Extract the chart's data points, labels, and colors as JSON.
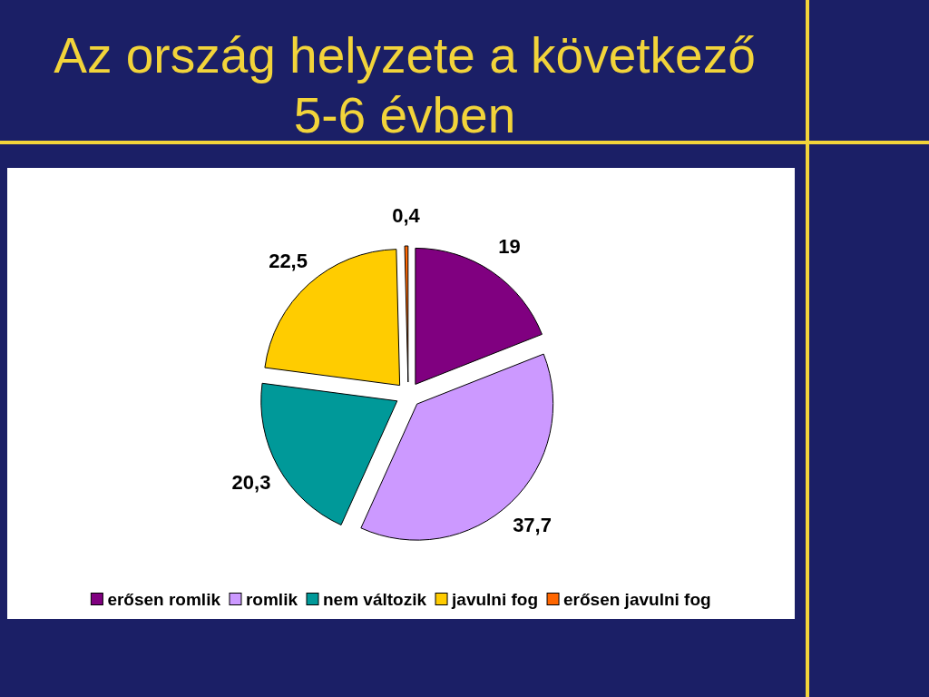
{
  "chart_data": {
    "type": "pie",
    "title": "Az ország helyzete a következő 5-6 évben",
    "categories": [
      "erősen romlik",
      "romlik",
      "nem változik",
      "javulni fog",
      "erősen javulni fog"
    ],
    "values": [
      19,
      37.7,
      20.3,
      22.5,
      0.4
    ],
    "colors": [
      "#800080",
      "#cc99ff",
      "#009999",
      "#ffcc00",
      "#ff6600"
    ],
    "value_labels": [
      "19",
      "37,7",
      "20,3",
      "22,5",
      "0,4"
    ],
    "legend": "bottom"
  }
}
